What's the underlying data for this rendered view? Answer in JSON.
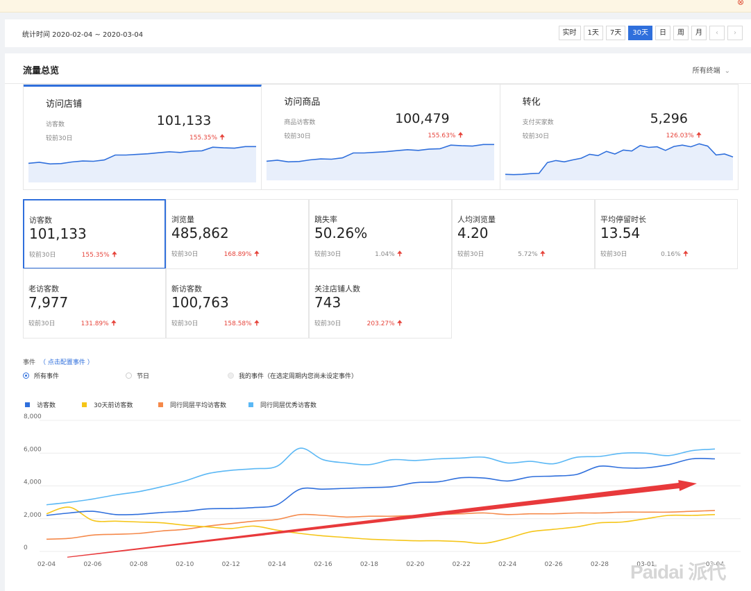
{
  "notice": {
    "close_icon": "close-circle-icon"
  },
  "date_bar": {
    "range_label": "统计时间 2020-02-04 ~ 2020-03-04",
    "periods": [
      "实时",
      "1天",
      "7天",
      "30天",
      "日",
      "周",
      "月"
    ],
    "active_period": "30天",
    "prev_icon": "chevron-left-icon",
    "next_icon": "chevron-right-icon",
    "prev_glyph": "‹",
    "next_glyph": "›"
  },
  "panel": {
    "title": "流量总览",
    "terminal_select": "所有终端",
    "terminal_chevron": "⌄"
  },
  "top_cards": [
    {
      "title": "访问店铺",
      "sub_label": "访客数",
      "value": "101,133",
      "compare_label": "较前30日",
      "change": "155.35%",
      "trend": "up",
      "spark": [
        5,
        5.3,
        4.8,
        4.9,
        5.4,
        5.7,
        5.6,
        6,
        7.5,
        7.5,
        7.7,
        7.9,
        8.2,
        8.5,
        8.3,
        8.7,
        8.8,
        9.9,
        9.7,
        9.6,
        10.1,
        10.1
      ]
    },
    {
      "title": "访问商品",
      "sub_label": "商品访客数",
      "value": "100,479",
      "compare_label": "较前30日",
      "change": "155.63%",
      "trend": "up",
      "spark": [
        5,
        5.3,
        4.8,
        4.9,
        5.4,
        5.7,
        5.6,
        6,
        7.5,
        7.5,
        7.7,
        7.9,
        8.2,
        8.5,
        8.3,
        8.7,
        8.8,
        9.9,
        9.7,
        9.6,
        10.1,
        10.1
      ]
    },
    {
      "title": "转化",
      "sub_label": "支付买家数",
      "value": "5,296",
      "compare_label": "较前30日",
      "change": "126.03%",
      "trend": "up",
      "spark": [
        1,
        0.9,
        1,
        1.2,
        1.3,
        4.6,
        5.2,
        4.8,
        5.4,
        5.9,
        7.1,
        6.7,
        8,
        7.2,
        8.4,
        8.1,
        9.8,
        9.2,
        9.4,
        8.3,
        9.5,
        9.9,
        9.4,
        10.3,
        9.6,
        6.9,
        7.2,
        6.3
      ]
    }
  ],
  "metrics": [
    {
      "label": "访客数",
      "value": "101,133",
      "compare_label": "较前30日",
      "change": "155.35%",
      "color": "red",
      "selected": true
    },
    {
      "label": "浏览量",
      "value": "485,862",
      "compare_label": "较前30日",
      "change": "168.89%",
      "color": "red",
      "selected": false
    },
    {
      "label": "跳失率",
      "value": "50.26%",
      "compare_label": "较前30日",
      "change": "1.04%",
      "color": "gray",
      "selected": false
    },
    {
      "label": "人均浏览量",
      "value": "4.20",
      "compare_label": "较前30日",
      "change": "5.72%",
      "color": "gray",
      "selected": false
    },
    {
      "label": "平均停留时长",
      "value": "13.54",
      "compare_label": "较前30日",
      "change": "0.16%",
      "color": "gray",
      "selected": false
    },
    {
      "label": "老访客数",
      "value": "7,977",
      "compare_label": "较前30日",
      "change": "131.89%",
      "color": "red",
      "selected": false
    },
    {
      "label": "新访客数",
      "value": "100,763",
      "compare_label": "较前30日",
      "change": "158.58%",
      "color": "red",
      "selected": false
    },
    {
      "label": "关注店铺人数",
      "value": "743",
      "compare_label": "较前30日",
      "change": "203.27%",
      "color": "red",
      "selected": false
    }
  ],
  "up_arrow_glyph": "🠉",
  "events": {
    "label": "事件",
    "config_link": "（ 点击配置事件 ）",
    "options": [
      {
        "label": "所有事件",
        "state": "selected"
      },
      {
        "label": "节日",
        "state": "unselected"
      },
      {
        "label": "我的事件（在选定周期内您尚未设定事件）",
        "state": "disabled"
      }
    ]
  },
  "chart_data": {
    "type": "line",
    "x": [
      "02-04",
      "02-05",
      "02-06",
      "02-07",
      "02-08",
      "02-09",
      "02-10",
      "02-11",
      "02-12",
      "02-13",
      "02-14",
      "02-15",
      "02-16",
      "02-17",
      "02-18",
      "02-19",
      "02-20",
      "02-21",
      "02-22",
      "02-23",
      "02-24",
      "02-25",
      "02-26",
      "02-27",
      "02-28",
      "02-29",
      "03-01",
      "03-02",
      "03-03",
      "03-04"
    ],
    "x_tick_labels": [
      "02-04",
      "02-06",
      "02-08",
      "02-10",
      "02-12",
      "02-14",
      "02-16",
      "02-18",
      "02-20",
      "02-22",
      "02-24",
      "02-26",
      "02-28",
      "03-01",
      "03-04"
    ],
    "y_ticks": [
      "0",
      "2,000",
      "4,000",
      "6,000",
      "8,000"
    ],
    "ylim": [
      0,
      8000
    ],
    "grid": true,
    "legend_position": "top-left",
    "series": [
      {
        "name": "访客数",
        "color": "#2f6fdc",
        "values": [
          2200,
          2350,
          2450,
          2250,
          2270,
          2380,
          2450,
          2600,
          2620,
          2680,
          2850,
          3800,
          3800,
          3850,
          3900,
          3950,
          4200,
          4250,
          4500,
          4480,
          4300,
          4550,
          4600,
          4700,
          5200,
          5100,
          5100,
          5300,
          5650,
          5650
        ]
      },
      {
        "name": "30天前访客数",
        "color": "#f5c518",
        "values": [
          2300,
          2700,
          1900,
          1850,
          1800,
          1750,
          1600,
          1500,
          1400,
          1550,
          1300,
          1100,
          950,
          850,
          750,
          700,
          650,
          650,
          600,
          500,
          800,
          1200,
          1350,
          1500,
          1750,
          1800,
          2000,
          2200,
          2200,
          2250
        ]
      },
      {
        "name": "同行同层平均访客数",
        "color": "#f5894a",
        "values": [
          750,
          800,
          1000,
          1050,
          1100,
          1250,
          1350,
          1550,
          1700,
          1850,
          1950,
          2250,
          2200,
          2100,
          2150,
          2150,
          2200,
          2250,
          2300,
          2350,
          2250,
          2300,
          2300,
          2350,
          2350,
          2400,
          2400,
          2400,
          2450,
          2500
        ]
      },
      {
        "name": "同行同层优秀访客数",
        "color": "#5bb8f5",
        "values": [
          2850,
          3000,
          3200,
          3450,
          3650,
          3950,
          4300,
          4750,
          4950,
          5050,
          5200,
          6300,
          5600,
          5400,
          5300,
          5600,
          5550,
          5650,
          5700,
          5750,
          5400,
          5500,
          5350,
          5750,
          5800,
          6000,
          6000,
          5850,
          6150,
          6250
        ]
      }
    ],
    "annotation": {
      "type": "arrow",
      "color": "#e8393b",
      "from": [
        "02-04",
        -350
      ],
      "to": [
        "03-04",
        4150
      ]
    }
  },
  "watermark": "Paidai 派代"
}
